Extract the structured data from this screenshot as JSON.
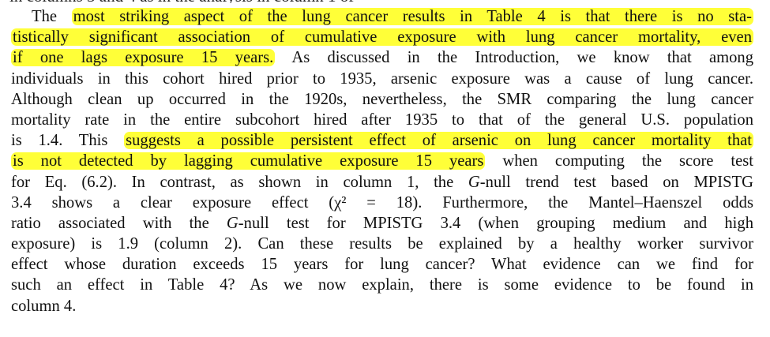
{
  "paragraph": {
    "lines": [
      {
        "parts": [
          {
            "t": "The "
          },
          {
            "t": "most striking aspect of the lung cancer results in Table 4 is that there is no sta-",
            "hl": true
          }
        ],
        "indent": true,
        "justify": true
      },
      {
        "parts": [
          {
            "t": "tistically significant association of cumulative exposure with lung cancer mortality, even",
            "hl": true
          }
        ],
        "justify": true
      },
      {
        "parts": [
          {
            "t": "if one lags exposure 15 years.",
            "hl": true
          },
          {
            "t": " As discussed in the Introduction, we know that among"
          }
        ],
        "justify": true
      },
      {
        "parts": [
          {
            "t": "individuals in this cohort hired prior to 1935, arsenic exposure was a cause of lung cancer."
          }
        ],
        "justify": true
      },
      {
        "parts": [
          {
            "t": "Although clean up occurred in the 1920s, nevertheless, the SMR comparing the lung cancer"
          }
        ],
        "justify": true
      },
      {
        "parts": [
          {
            "t": "mortality rate in the entire subcohort hired after 1935 to that of the general U.S. population"
          }
        ],
        "justify": true
      },
      {
        "parts": [
          {
            "t": "is 1.4. This "
          },
          {
            "t": "suggests a possible persistent effect of arsenic on lung cancer mortality that",
            "hl": true
          }
        ],
        "justify": true
      },
      {
        "parts": [
          {
            "t": "is not detected by lagging cumulative exposure 15 years",
            "hl": true
          },
          {
            "t": " when computing the score test"
          }
        ],
        "justify": true
      },
      {
        "parts": [
          {
            "t": "for Eq. (6.2). In contrast, as shown in column 1, the "
          },
          {
            "t": "G",
            "i": true
          },
          {
            "t": "-null trend test based on MPISTG"
          }
        ],
        "justify": true
      },
      {
        "parts": [
          {
            "t": "3.4 shows a clear exposure effect (χ² = 18). Furthermore, the Mantel–Haenszel odds"
          }
        ],
        "justify": true
      },
      {
        "parts": [
          {
            "t": "ratio associated with the "
          },
          {
            "t": "G",
            "i": true
          },
          {
            "t": "-null test for MPISTG 3.4 (when grouping medium and high"
          }
        ],
        "justify": true
      },
      {
        "parts": [
          {
            "t": "exposure) is 1.9 (column 2). Can these results be explained by a healthy worker survivor"
          }
        ],
        "justify": true
      },
      {
        "parts": [
          {
            "t": "effect whose duration exceeds 15 years for lung cancer? What evidence can we find for"
          }
        ],
        "justify": true
      },
      {
        "parts": [
          {
            "t": "such an effect in Table 4? As we now explain, there is some evidence to be found in"
          }
        ],
        "justify": true
      },
      {
        "parts": [
          {
            "t": "column 4."
          }
        ],
        "justify": false
      }
    ]
  },
  "colors": {
    "highlight": "#ffff38",
    "text": "#111111"
  }
}
